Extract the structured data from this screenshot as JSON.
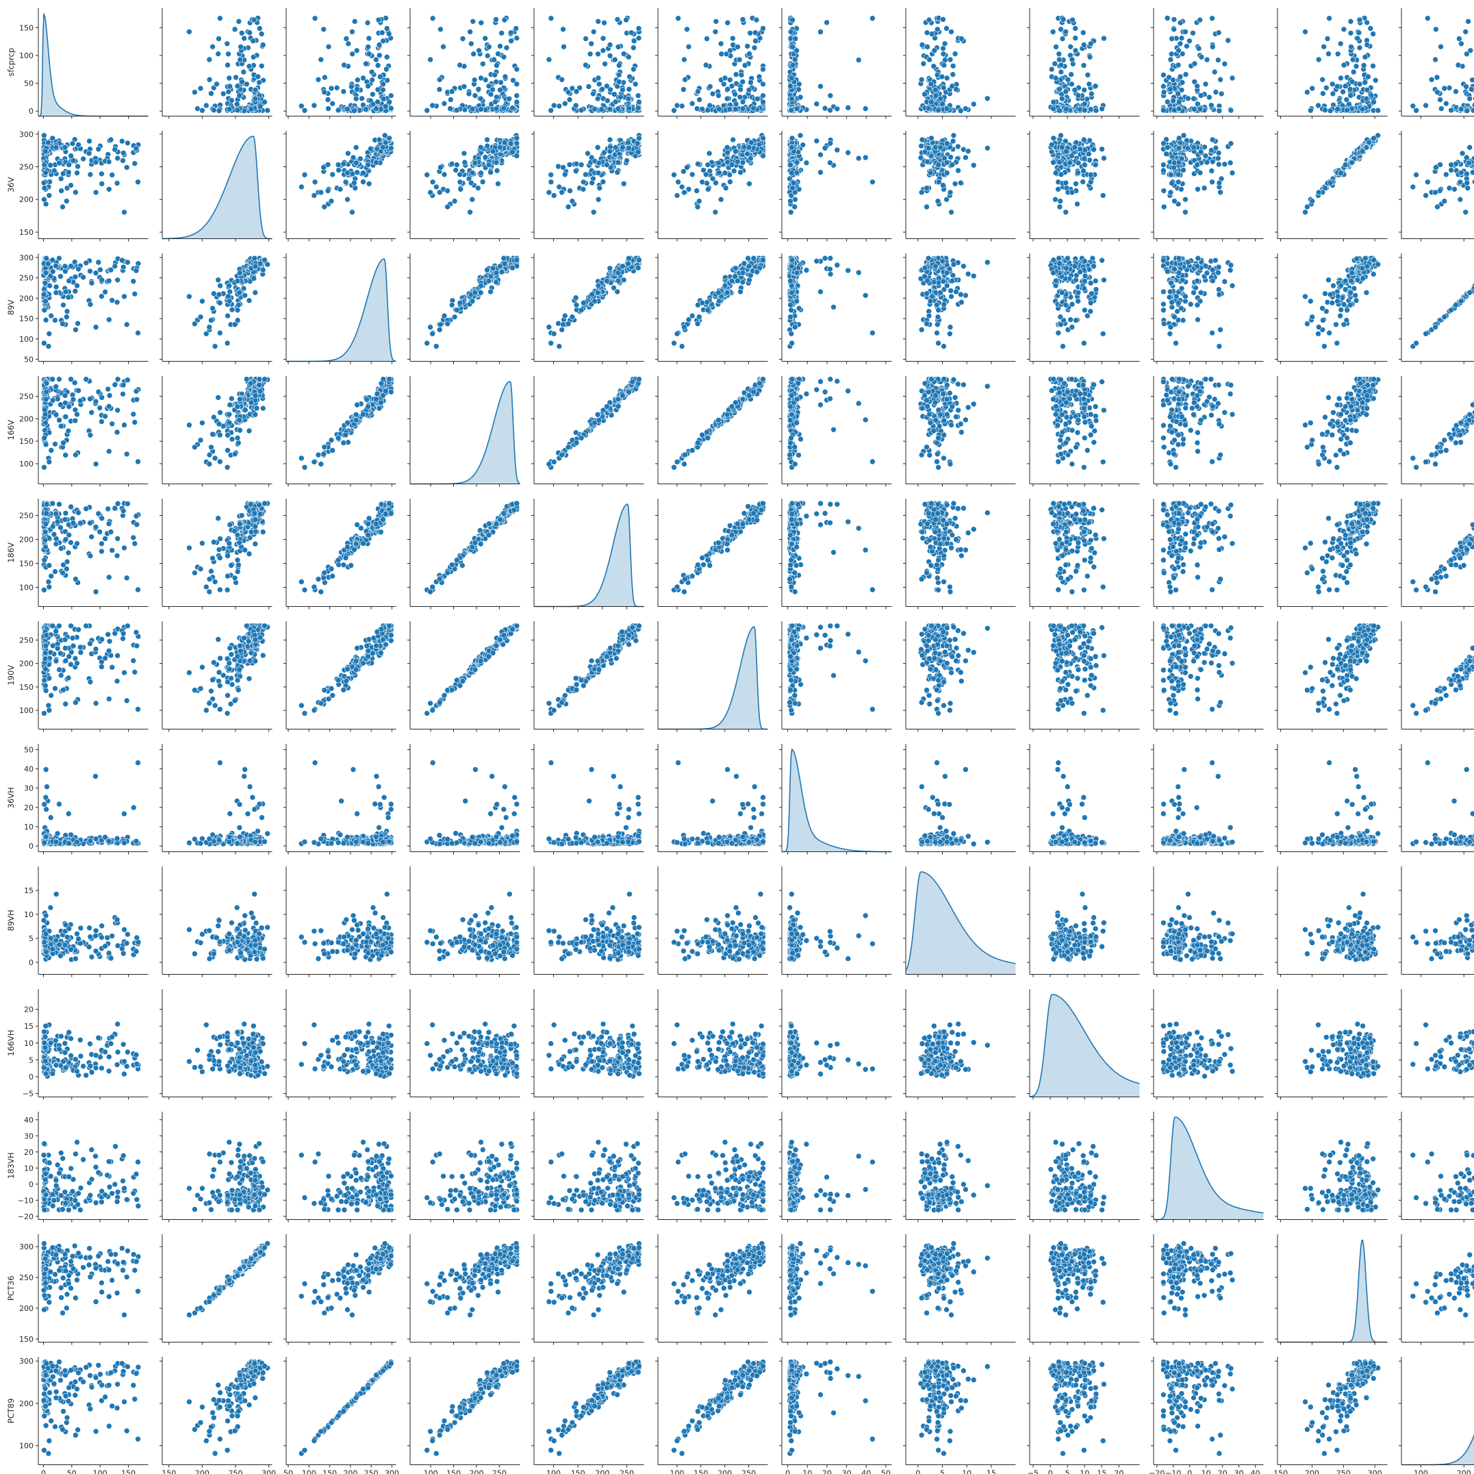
{
  "colors": {
    "marker": "#1f77b4",
    "marker_edge": "#ffffff",
    "kde_fill": "#1f77b4",
    "axis": "#262626"
  },
  "chart_data": {
    "type": "scatter",
    "layout": "pairplot",
    "grid": false,
    "legend": "none",
    "diagonal": "kde",
    "variables": [
      {
        "name": "sfcprcp",
        "lim": [
          -9,
          185
        ],
        "ticks": [
          0,
          50,
          100,
          150
        ],
        "peak": 0.3,
        "spread": 1.6,
        "skew": "right"
      },
      {
        "name": "36V",
        "lim": [
          140,
          305
        ],
        "ticks": [
          150,
          200,
          250,
          300
        ],
        "peak": 277,
        "spread": 6,
        "skew": "left"
      },
      {
        "name": "89V",
        "lim": [
          45,
          310
        ],
        "ticks": [
          50,
          100,
          150,
          200,
          250,
          300
        ],
        "peak": 282,
        "spread": 7,
        "skew": "left"
      },
      {
        "name": "166V",
        "lim": [
          55,
          295
        ],
        "ticks": [
          100,
          150,
          200,
          250
        ],
        "peak": 274,
        "spread": 6,
        "skew": "left"
      },
      {
        "name": "186V",
        "lim": [
          60,
          285
        ],
        "ticks": [
          100,
          150,
          200,
          250
        ],
        "peak": 252,
        "spread": 5,
        "skew": "left"
      },
      {
        "name": "190V",
        "lim": [
          60,
          290
        ],
        "ticks": [
          100,
          150,
          200,
          250
        ],
        "peak": 262,
        "spread": 5,
        "skew": "left"
      },
      {
        "name": "36VH",
        "lim": [
          -3,
          53
        ],
        "ticks": [
          0,
          10,
          20,
          30,
          40,
          50
        ],
        "peak": 2,
        "spread": 0.9,
        "skew": "right"
      },
      {
        "name": "89VH",
        "lim": [
          -2.5,
          20
        ],
        "ticks": [
          0,
          5,
          10,
          15
        ],
        "peak": 0.6,
        "spread": 1.2,
        "skew": "right"
      },
      {
        "name": "166VH",
        "lim": [
          -6,
          26
        ],
        "ticks": [
          -5,
          0,
          5,
          10,
          15,
          20
        ],
        "peak": 0.5,
        "spread": 1.8,
        "skew": "right"
      },
      {
        "name": "183VH",
        "lim": [
          -22,
          45
        ],
        "ticks": [
          -20,
          -10,
          0,
          10,
          20,
          30,
          40
        ],
        "peak": -9,
        "spread": 2.5,
        "skew": "right"
      },
      {
        "name": "PCT36",
        "lim": [
          145,
          320
        ],
        "ticks": [
          150,
          200,
          250,
          300
        ],
        "peak": 280,
        "spread": 6,
        "skew": "none"
      },
      {
        "name": "PCT89",
        "lim": [
          55,
          310
        ],
        "ticks": [
          100,
          200,
          300
        ],
        "peak": 290,
        "spread": 7,
        "skew": "left"
      }
    ],
    "xlabels": [
      "sfcprcp",
      "36V",
      "89V",
      "166V",
      "186V",
      "190V",
      "36VH",
      "89VH",
      "166VH",
      "183VH",
      "PCT36",
      "PCT89"
    ],
    "ylabels": [
      "sfcprcp",
      "36V",
      "89V",
      "166V",
      "186V",
      "190V",
      "36VH",
      "89VH",
      "166VH",
      "183VH",
      "PCT36",
      "PCT89"
    ]
  }
}
